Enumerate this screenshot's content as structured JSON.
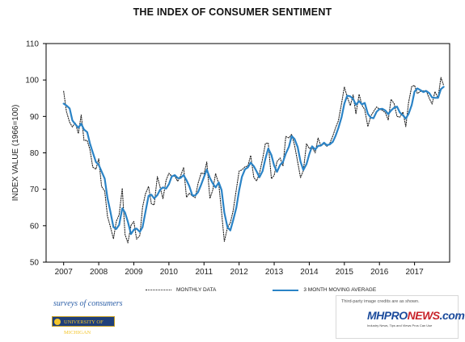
{
  "page": {
    "title": "THE INDEX OF CONSUMER SENTIMENT"
  },
  "legend": {
    "monthly": "MONTHLY DATA",
    "moving_avg": "3 MONTH MOVING AVERAGE"
  },
  "logos": {
    "surveys": "surveys of consumers",
    "university": "UNIVERSITY OF MICHIGAN",
    "credit": "Third-party image credits are as shown.",
    "mh_part1": "MHPRO",
    "mh_part2": "NEWS",
    "mh_part3": ".com",
    "mh_tagline": "Industry News, Tips and Views Pros Can Use"
  },
  "colors": {
    "monthly": "#222222",
    "moving_avg": "#2a83c6",
    "axis": "#000000"
  },
  "chart_data": {
    "type": "line",
    "title": "THE INDEX OF CONSUMER SENTIMENT",
    "xlabel": "",
    "ylabel": "INDEX VALUE (1966=100)",
    "xlim": [
      2006.5,
      2018.0
    ],
    "ylim": [
      50,
      110
    ],
    "yticks": [
      50,
      60,
      70,
      80,
      90,
      100,
      110
    ],
    "xticks": [
      2007,
      2008,
      2009,
      2010,
      2011,
      2012,
      2013,
      2014,
      2015,
      2016,
      2017
    ],
    "xtick_labels": [
      "2007",
      "2008",
      "2009",
      "2010",
      "2011",
      "2012",
      "2013",
      "2014",
      "2015",
      "2016",
      "2017"
    ],
    "grid": false,
    "legend_position": "bottom",
    "series": [
      {
        "name": "MONTHLY DATA",
        "style": "dotted",
        "x": [
          2007.0,
          2007.08,
          2007.17,
          2007.25,
          2007.33,
          2007.42,
          2007.5,
          2007.58,
          2007.67,
          2007.75,
          2007.83,
          2007.92,
          2008.0,
          2008.08,
          2008.17,
          2008.25,
          2008.33,
          2008.42,
          2008.5,
          2008.58,
          2008.67,
          2008.75,
          2008.83,
          2008.92,
          2009.0,
          2009.08,
          2009.17,
          2009.25,
          2009.33,
          2009.42,
          2009.5,
          2009.58,
          2009.67,
          2009.75,
          2009.83,
          2009.92,
          2010.0,
          2010.08,
          2010.17,
          2010.25,
          2010.33,
          2010.42,
          2010.5,
          2010.58,
          2010.67,
          2010.75,
          2010.83,
          2010.92,
          2011.0,
          2011.08,
          2011.17,
          2011.25,
          2011.33,
          2011.42,
          2011.5,
          2011.58,
          2011.67,
          2011.75,
          2011.83,
          2011.92,
          2012.0,
          2012.08,
          2012.17,
          2012.25,
          2012.33,
          2012.42,
          2012.5,
          2012.58,
          2012.67,
          2012.75,
          2012.83,
          2012.92,
          2013.0,
          2013.08,
          2013.17,
          2013.25,
          2013.33,
          2013.42,
          2013.5,
          2013.58,
          2013.67,
          2013.75,
          2013.83,
          2013.92,
          2014.0,
          2014.08,
          2014.17,
          2014.25,
          2014.33,
          2014.42,
          2014.5,
          2014.58,
          2014.67,
          2014.75,
          2014.83,
          2014.92,
          2015.0,
          2015.08,
          2015.17,
          2015.25,
          2015.33,
          2015.42,
          2015.5,
          2015.58,
          2015.67,
          2015.75,
          2015.83,
          2015.92,
          2016.0,
          2016.08,
          2016.17,
          2016.25,
          2016.33,
          2016.42,
          2016.5,
          2016.58,
          2016.67,
          2016.75,
          2016.83,
          2016.92,
          2017.0,
          2017.08,
          2017.17,
          2017.25,
          2017.33,
          2017.42,
          2017.5,
          2017.58,
          2017.67,
          2017.75,
          2017.83
        ],
        "values": [
          96.9,
          91.3,
          88.4,
          87.1,
          88.3,
          85.3,
          90.4,
          83.4,
          83.4,
          80.9,
          76.1,
          75.5,
          78.4,
          70.8,
          69.5,
          62.6,
          59.8,
          56.4,
          61.2,
          63.0,
          70.3,
          57.6,
          55.3,
          60.1,
          61.2,
          56.3,
          57.3,
          65.1,
          68.7,
          70.8,
          66.0,
          65.7,
          73.5,
          70.6,
          67.4,
          72.5,
          74.4,
          73.6,
          73.6,
          72.2,
          73.6,
          76.0,
          67.8,
          68.9,
          68.2,
          67.7,
          71.6,
          74.5,
          74.2,
          77.5,
          67.5,
          69.8,
          74.3,
          71.5,
          63.7,
          55.7,
          59.5,
          60.8,
          64.1,
          69.9,
          75.0,
          75.3,
          76.2,
          76.4,
          79.3,
          73.2,
          72.3,
          74.3,
          78.3,
          82.6,
          82.7,
          72.9,
          73.8,
          77.6,
          78.6,
          76.4,
          84.5,
          84.1,
          85.1,
          82.1,
          77.5,
          73.2,
          75.1,
          82.5,
          81.2,
          81.6,
          80.0,
          84.1,
          81.9,
          82.5,
          81.8,
          82.5,
          84.6,
          86.9,
          88.8,
          93.6,
          98.1,
          95.4,
          93.0,
          95.9,
          90.7,
          96.1,
          93.1,
          91.9,
          87.2,
          90.0,
          91.3,
          92.6,
          92.0,
          91.7,
          91.0,
          89.0,
          94.7,
          93.5,
          90.0,
          89.8,
          91.2,
          87.2,
          93.8,
          98.2,
          98.5,
          96.3,
          96.9,
          97.0,
          97.1,
          95.0,
          93.4,
          96.8,
          95.1,
          100.7,
          98.5
        ]
      },
      {
        "name": "3 MONTH MOVING AVERAGE",
        "style": "solid",
        "x": [
          2007.0,
          2007.08,
          2007.17,
          2007.25,
          2007.33,
          2007.42,
          2007.5,
          2007.58,
          2007.67,
          2007.75,
          2007.83,
          2007.92,
          2008.0,
          2008.08,
          2008.17,
          2008.25,
          2008.33,
          2008.42,
          2008.5,
          2008.58,
          2008.67,
          2008.75,
          2008.83,
          2008.92,
          2009.0,
          2009.08,
          2009.17,
          2009.25,
          2009.33,
          2009.42,
          2009.5,
          2009.58,
          2009.67,
          2009.75,
          2009.83,
          2009.92,
          2010.0,
          2010.08,
          2010.17,
          2010.25,
          2010.33,
          2010.42,
          2010.5,
          2010.58,
          2010.67,
          2010.75,
          2010.83,
          2010.92,
          2011.0,
          2011.08,
          2011.17,
          2011.25,
          2011.33,
          2011.42,
          2011.5,
          2011.58,
          2011.67,
          2011.75,
          2011.83,
          2011.92,
          2012.0,
          2012.08,
          2012.17,
          2012.25,
          2012.33,
          2012.42,
          2012.5,
          2012.58,
          2012.67,
          2012.75,
          2012.83,
          2012.92,
          2013.0,
          2013.08,
          2013.17,
          2013.25,
          2013.33,
          2013.42,
          2013.5,
          2013.58,
          2013.67,
          2013.75,
          2013.83,
          2013.92,
          2014.0,
          2014.08,
          2014.17,
          2014.25,
          2014.33,
          2014.42,
          2014.5,
          2014.58,
          2014.67,
          2014.75,
          2014.83,
          2014.92,
          2015.0,
          2015.08,
          2015.17,
          2015.25,
          2015.33,
          2015.42,
          2015.5,
          2015.58,
          2015.67,
          2015.75,
          2015.83,
          2015.92,
          2016.0,
          2016.08,
          2016.17,
          2016.25,
          2016.33,
          2016.42,
          2016.5,
          2016.58,
          2016.67,
          2016.75,
          2016.83,
          2016.92,
          2017.0,
          2017.08,
          2017.17,
          2017.25,
          2017.33,
          2017.42,
          2017.5,
          2017.58,
          2017.67,
          2017.75,
          2017.83
        ],
        "values": [
          93.5,
          93.0,
          92.2,
          88.9,
          87.9,
          86.9,
          88.0,
          86.4,
          85.7,
          82.6,
          80.1,
          77.5,
          76.7,
          74.9,
          72.9,
          67.6,
          64.0,
          59.6,
          59.1,
          60.2,
          64.8,
          63.6,
          61.1,
          57.7,
          58.9,
          59.2,
          58.3,
          59.6,
          63.7,
          68.2,
          68.5,
          67.5,
          68.4,
          69.9,
          70.5,
          70.2,
          71.4,
          73.5,
          73.9,
          73.1,
          73.1,
          73.9,
          72.5,
          70.9,
          68.3,
          68.3,
          69.2,
          71.3,
          73.4,
          75.4,
          73.1,
          71.6,
          70.5,
          71.9,
          69.8,
          63.6,
          59.6,
          58.7,
          61.5,
          64.9,
          69.7,
          73.4,
          75.5,
          76.0,
          77.3,
          76.3,
          74.9,
          73.3,
          75.0,
          78.4,
          81.2,
          79.4,
          76.5,
          74.8,
          76.7,
          77.5,
          79.8,
          81.7,
          84.6,
          83.8,
          81.6,
          77.6,
          75.3,
          76.9,
          79.6,
          81.8,
          80.9,
          81.9,
          82.0,
          82.8,
          82.1,
          82.3,
          83.0,
          84.7,
          86.8,
          89.8,
          93.5,
          95.7,
          95.5,
          94.8,
          93.2,
          94.2,
          93.3,
          93.7,
          90.7,
          89.7,
          89.5,
          91.3,
          92.0,
          92.1,
          91.6,
          90.6,
          91.6,
          92.4,
          92.7,
          91.1,
          90.3,
          89.4,
          90.7,
          93.1,
          96.8,
          97.7,
          97.2,
          96.7,
          97.0,
          96.4,
          95.2,
          95.1,
          95.1,
          97.5,
          98.1
        ]
      }
    ]
  }
}
